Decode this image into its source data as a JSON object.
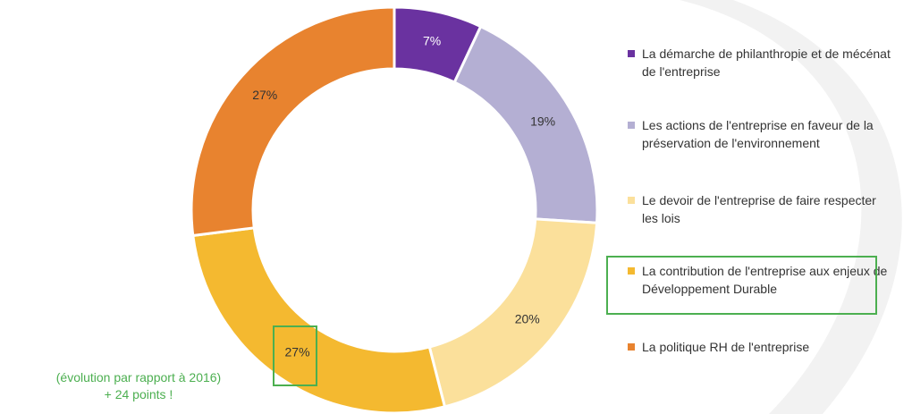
{
  "chart_data": {
    "type": "donut",
    "categories": [
      "La démarche de philanthropie et de mécénat de l'entreprise",
      "Les actions de l'entreprise en faveur de la préservation de l'environnement",
      "Le devoir de l'entreprise de faire respecter les lois",
      "La contribution de l'entreprise aux enjeux de Développement Durable",
      "La politique RH de l'entreprise"
    ],
    "values": [
      7,
      19,
      20,
      27,
      27
    ],
    "value_labels": [
      "7%",
      "19%",
      "20%",
      "27%",
      "27%"
    ],
    "colors": [
      "#6a32a0",
      "#b4afd3",
      "#fbe09b",
      "#f4b930",
      "#e8832f"
    ],
    "label_colors": [
      "#ffffff",
      "#333333",
      "#333333",
      "#333333",
      "#333333"
    ],
    "legend": "right",
    "annotations": [
      "(évolution par rapport à 2016)",
      "+ 24 points !"
    ]
  }
}
